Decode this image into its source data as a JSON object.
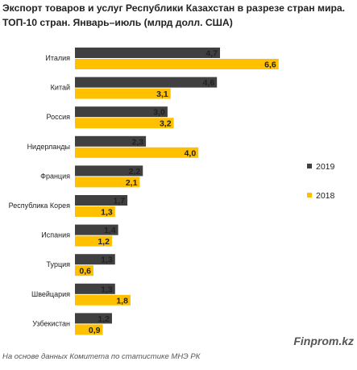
{
  "title": "Экспорт товаров и услуг Республики Казахстан в разрезе стран мира. ТОП-10 стран. Январь–июль (млрд долл. США)",
  "source": "На основе данных Комитета по статистике МНЭ РК",
  "brand": "Finprom.kz",
  "chart_data": {
    "type": "bar",
    "orientation": "horizontal",
    "categories": [
      "Италия",
      "Китай",
      "Россия",
      "Нидерланды",
      "Франция",
      "Республика Корея",
      "Испания",
      "Турция",
      "Швейцария",
      "Узбекистан"
    ],
    "series": [
      {
        "name": "2019",
        "color": "#404040",
        "values": [
          4.7,
          4.6,
          3.0,
          2.3,
          2.2,
          1.7,
          1.4,
          1.3,
          1.3,
          1.2
        ],
        "labels": [
          "4,7",
          "4,6",
          "3,0",
          "2,3",
          "2,2",
          "1,7",
          "1,4",
          "1,3",
          "1,3",
          "1,2"
        ]
      },
      {
        "name": "2018",
        "color": "#ffc000",
        "values": [
          6.6,
          3.1,
          3.2,
          4.0,
          2.1,
          1.3,
          1.2,
          0.6,
          1.8,
          0.9
        ],
        "labels": [
          "6,6",
          "3,1",
          "3,2",
          "4,0",
          "2,1",
          "1,3",
          "1,2",
          "0,6",
          "1,8",
          "0,9"
        ]
      }
    ],
    "xlim": [
      0,
      7
    ],
    "grid": false,
    "legend": "right"
  }
}
